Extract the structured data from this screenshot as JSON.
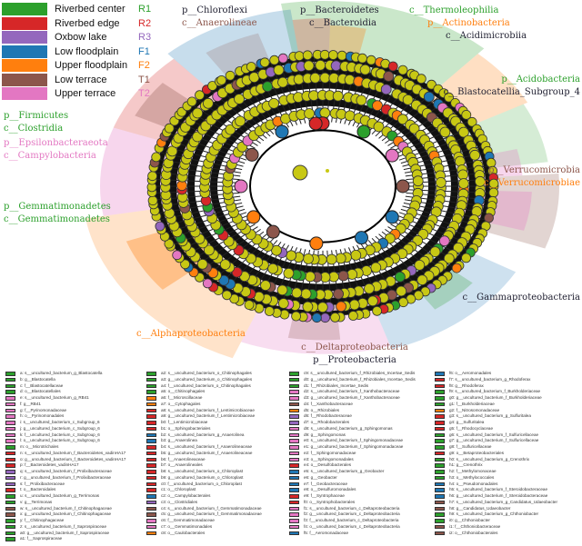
{
  "colors": {
    "R1": "#2ca02c",
    "R2": "#d62728",
    "R3": "#9467bd",
    "F1": "#1f77b4",
    "F2": "#ff7f0e",
    "T1": "#8c564b",
    "T2": "#e377c2",
    "node": "#c8c814"
  },
  "groups": [
    {
      "name": "Riverbed center",
      "code": "R1",
      "color": "#2ca02c"
    },
    {
      "name": "Riverbed edge",
      "code": "R2",
      "color": "#d62728"
    },
    {
      "name": "Oxbow lake",
      "code": "R3",
      "color": "#9467bd"
    },
    {
      "name": "Low floodplain",
      "code": "F1",
      "color": "#1f77b4"
    },
    {
      "name": "Upper floodplain",
      "code": "F2",
      "color": "#ff7f0e"
    },
    {
      "name": "Low terrace",
      "code": "T1",
      "color": "#8c564b"
    },
    {
      "name": "Upper terrace",
      "code": "T2",
      "color": "#e377c2"
    }
  ],
  "clade_labels": [
    {
      "text": "p__Bacteroidetes",
      "g": "dark"
    },
    {
      "text": "c__Bacteroidia",
      "g": "dark"
    },
    {
      "text": "c__Thermoleophilia",
      "g": "R1"
    },
    {
      "text": "p__Actinobacteria",
      "g": "F2"
    },
    {
      "text": "c__Acidimicrobiia",
      "g": "dark"
    },
    {
      "text": "p__Acidobacteria",
      "g": "R1"
    },
    {
      "text": "c__Blastocatellia_Subgroup_4",
      "g": "dark"
    },
    {
      "text": "p__Verrucomicrobia",
      "g": "T1"
    },
    {
      "text": "c__Verrucomicrobiae",
      "g": "F2"
    },
    {
      "text": "c__Gammaproteobacteria",
      "g": "dark"
    },
    {
      "text": "p__Proteobacteria",
      "g": "dark"
    },
    {
      "text": "c__Deltaproteobacteria",
      "g": "T1"
    },
    {
      "text": "c__Alphaproteobacteria",
      "g": "F2"
    },
    {
      "text": "p__Gemmatimonadetes",
      "g": "R1"
    },
    {
      "text": "c__Gemmatimonadetes",
      "g": "R1"
    },
    {
      "text": "p__Firmicutes",
      "g": "R1"
    },
    {
      "text": "c__Clostridia",
      "g": "R1"
    },
    {
      "text": "p__Epsilonbacteraeota",
      "g": "T2"
    },
    {
      "text": "c__Campylobacteria",
      "g": "T2"
    },
    {
      "text": "p__Chloroflexi",
      "g": "dark"
    },
    {
      "text": "c__Anaerolineae",
      "g": "T1"
    }
  ],
  "legend": [
    [
      [
        "a: s__uncultured_bacterium_g_Blastocatella",
        "R1"
      ],
      [
        "b: g__Blastocatella",
        "R1"
      ],
      [
        "c: f__Blastocatellaceae",
        "R1"
      ],
      [
        "d: o__Blastocatellales",
        "R1"
      ],
      [
        "e: s__uncultured_bacterium_g_RB41",
        "T2"
      ],
      [
        "f: g__RB41",
        "T2"
      ],
      [
        "g: f__Pyrinomonadaceae",
        "T2"
      ],
      [
        "h: o__Pyrinomonadales",
        "T2"
      ],
      [
        "i: s__uncultured_bacterium_c_Subgroup_6",
        "T2"
      ],
      [
        "j: g__uncultured_bacterium_c_Subgroup_6",
        "T2"
      ],
      [
        "k: f__uncultured_bacterium_c_Subgroup_6",
        "T2"
      ],
      [
        "l: o__uncultured_bacterium_c_Subgroup_6",
        "T2"
      ],
      [
        "m: o__Microtrichales",
        "R1"
      ],
      [
        "n: s__uncultured_bacterium_f_Bacteroidetes_vadinHA17",
        "R2"
      ],
      [
        "o: g__uncultured_bacterium_f_Bacteroidetes_vadinHA17",
        "R2"
      ],
      [
        "p: f__Bacteroidetes_vadinHA17",
        "R2"
      ],
      [
        "q: s__uncultured_bacterium_f_Prolixibacteraceae",
        "R3"
      ],
      [
        "r: g__uncultured_bacterium_f_Prolixibacteraceae",
        "R3"
      ],
      [
        "s: f__Prolixibacteraceae",
        "R3"
      ],
      [
        "t: o__Bacteroidales",
        "R2"
      ],
      [
        "u: s__uncultured_bacterium_g_Terrimonas",
        "R1"
      ],
      [
        "v: g__Terrimonas",
        "R1"
      ],
      [
        "w: s__uncultured_bacterium_f_Chitinophagaceae",
        "T1"
      ],
      [
        "x: g__uncultured_bacterium_f_Chitinophagaceae",
        "T1"
      ],
      [
        "y: f__Chitinophagaceae",
        "R1"
      ],
      [
        "z: s__uncultured_bacterium_f_Saprospiraceae",
        "R1"
      ],
      [
        "a0: g__uncultured_bacterium_f_Saprospiraceae",
        "R1"
      ],
      [
        "a1: f__Saprospiraceae",
        "R1"
      ]
    ],
    [
      [
        "a2: s__uncultured_bacterium_o_Chitinophagales",
        "R1"
      ],
      [
        "a3: g__uncultured_bacterium_o_Chitinophagales",
        "R1"
      ],
      [
        "a4: f__uncultured_bacterium_o_Chitinophagales",
        "R1"
      ],
      [
        "a5: o__Chitinophagales",
        "R1"
      ],
      [
        "a6: f__Microscillaceae",
        "F2"
      ],
      [
        "a7: o__Cytophagales",
        "F2"
      ],
      [
        "a8: s__uncultured_bacterium_f_Lentimicrobiaceae",
        "R2"
      ],
      [
        "a9: g__uncultured_bacterium_f_Lentimicrobiaceae",
        "R2"
      ],
      [
        "b0: f__Lentimicrobiaceae",
        "R2"
      ],
      [
        "b1: o__Sphingobacteriales",
        "R2"
      ],
      [
        "b2: s__uncultured_bacterium_g_Anaerolinea",
        "F1"
      ],
      [
        "b3: g__Anaerolinea",
        "F1"
      ],
      [
        "b4: s__uncultured_bacterium_f_Anaerolineaceae",
        "R2"
      ],
      [
        "b5: g__uncultured_bacterium_f_Anaerolineaceae",
        "R2"
      ],
      [
        "b6: f__Anaerolineaceae",
        "R2"
      ],
      [
        "b7: o__Anaerolineales",
        "R2"
      ],
      [
        "b8: s__uncultured_bacterium_o_Chloroplast",
        "R2"
      ],
      [
        "b9: g__uncultured_bacterium_o_Chloroplast",
        "R2"
      ],
      [
        "c0: f__uncultured_bacterium_o_Chloroplast",
        "R2"
      ],
      [
        "c1: o__Chloroplast",
        "R2"
      ],
      [
        "c2: o__Campylobacterales",
        "F1"
      ],
      [
        "c3: o__Clostridiales",
        "R3"
      ],
      [
        "c4: s__uncultured_bacterium_f_Gemmatimonadaceae",
        "T1"
      ],
      [
        "c5: g__uncultured_bacterium_f_Gemmatimonadaceae",
        "T1"
      ],
      [
        "c6: f__Gemmatimonadaceae",
        "T2"
      ],
      [
        "c7: o__Gemmatimonadales",
        "T2"
      ],
      [
        "c8: o__Caulobacterales",
        "F2"
      ]
    ],
    [
      [
        "c9: s__uncultured_bacterium_f_Rhizobiales_Incertae_Sedis",
        "R1"
      ],
      [
        "d0: g__uncultured_bacterium_f_Rhizobiales_Incertae_Sedis",
        "R1"
      ],
      [
        "d1: f__Rhizobiales_Incertae_Sedis",
        "R1"
      ],
      [
        "d2: s__uncultured_bacterium_f_Xanthobacteraceae",
        "T2"
      ],
      [
        "d3: g__uncultured_bacterium_f_Xanthobacteraceae",
        "T2"
      ],
      [
        "d4: f__Xanthobacteraceae",
        "T1"
      ],
      [
        "d5: o__Rhizobiales",
        "F2"
      ],
      [
        "d6: f__Rhodobacteraceae",
        "R3"
      ],
      [
        "d7: o__Rhodobacterales",
        "R3"
      ],
      [
        "d8: s__uncultured_bacterium_g_Sphingomonas",
        "T2"
      ],
      [
        "d9: g__Sphingomonas",
        "T2"
      ],
      [
        "e0: s__uncultured_bacterium_f_Sphingomonadaceae",
        "T2"
      ],
      [
        "e1: g__uncultured_bacterium_f_Sphingomonadaceae",
        "T2"
      ],
      [
        "e2: f__Sphingomonadaceae",
        "T2"
      ],
      [
        "e3: o__Sphingomonadales",
        "T2"
      ],
      [
        "e4: o__Desulfobacterales",
        "R2"
      ],
      [
        "e5: s__uncultured_bacterium_g_Geobacter",
        "F1"
      ],
      [
        "e6: g__Geobacter",
        "F1"
      ],
      [
        "e7: f__Geobacteraceae",
        "F1"
      ],
      [
        "e8: o__Desulfuromonadales",
        "F1"
      ],
      [
        "e9: f__Syntrophaceae",
        "R2"
      ],
      [
        "f0: o__Syntrophobacterales",
        "R2"
      ],
      [
        "f1: s__uncultured_bacterium_c_Deltaproteobacteria",
        "T2"
      ],
      [
        "f2: g__uncultured_bacterium_c_Deltaproteobacteria",
        "T2"
      ],
      [
        "f3: f__uncultured_bacterium_c_Deltaproteobacteria",
        "T2"
      ],
      [
        "f4: o__uncultured_bacterium_c_Deltaproteobacteria",
        "T2"
      ],
      [
        "f5: f__Aeromonadaceae",
        "F1"
      ]
    ],
    [
      [
        "f6: o__Aeromonadales",
        "F1"
      ],
      [
        "f7: s__uncultured_bacterium_g_Rhodoferax",
        "R2"
      ],
      [
        "f8: g__Rhodoferax",
        "R2"
      ],
      [
        "f9: s__uncultured_bacterium_f_Burkholderiaceae",
        "R1"
      ],
      [
        "g0: g__uncultured_bacterium_f_Burkholderiaceae",
        "R1"
      ],
      [
        "g1: f__Burkholderiaceae",
        "R1"
      ],
      [
        "g2: f__Nitrosomonadaceae",
        "F2"
      ],
      [
        "g3: s__uncultured_bacterium_g_Sulfuritalea",
        "R2"
      ],
      [
        "g4: g__Sulfuritalea",
        "R2"
      ],
      [
        "g5: f__Rhodocyclaceae",
        "R2"
      ],
      [
        "g6: s__uncultured_bacterium_f_Sulfuricellaceae",
        "R1"
      ],
      [
        "g7: g__uncultured_bacterium_f_Sulfuricellaceae",
        "R1"
      ],
      [
        "g8: f__Sulfuricellaceae",
        "R1"
      ],
      [
        "g9: o__Betaproteobacteriales",
        "R2"
      ],
      [
        "h0: s__uncultured_bacterium_g_Crenothrix",
        "R1"
      ],
      [
        "h1: g__Crenothrix",
        "R1"
      ],
      [
        "h2: f__Methylomonaceae",
        "R1"
      ],
      [
        "h3: o__Methylococcales",
        "R1"
      ],
      [
        "h4: o__Pseudomonadales",
        "F1"
      ],
      [
        "h5: s__uncultured_bacterium_f_Steroidobacteraceae",
        "F1"
      ],
      [
        "h6: g__uncultured_bacterium_f_Steroidobacteraceae",
        "F1"
      ],
      [
        "h7: s__uncultured_bacterium_g_Candidatus_Udaeobacter",
        "T1"
      ],
      [
        "h8: g__Candidatus_Udaeobacter",
        "T1"
      ],
      [
        "h9: s__uncultured_bacterium_g_Chthoniobacter",
        "R1"
      ],
      [
        "i0: g__Chthoniobacter",
        "R1"
      ],
      [
        "i1: f__Chthoniobacteraceae",
        "T1"
      ],
      [
        "i2: o__Chthoniobacterales",
        "T1"
      ]
    ]
  ]
}
